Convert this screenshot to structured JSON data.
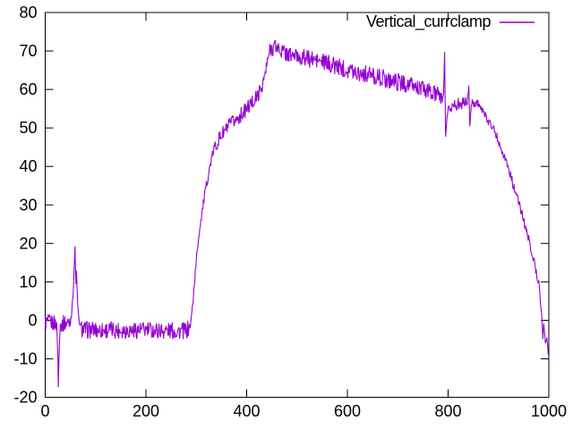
{
  "chart_data": {
    "type": "line",
    "title": "",
    "xlabel": "",
    "ylabel": "",
    "xlim": [
      0,
      1000
    ],
    "ylim": [
      -20,
      80
    ],
    "x_ticks": [
      0,
      200,
      400,
      600,
      800,
      1000
    ],
    "y_ticks": [
      -20,
      -10,
      0,
      10,
      20,
      30,
      40,
      50,
      60,
      70,
      80
    ],
    "grid": false,
    "background": "#ffffff",
    "axis_color": "#000000",
    "legend_position": "top-right-inside",
    "series": [
      {
        "name": "Vertical_currclamp",
        "color": "#9400d3",
        "sample_step": 1,
        "noise_default": 0.5,
        "keypoints": [
          [
            0,
            -0.5
          ],
          [
            20,
            -0.7
          ],
          [
            23,
            -1
          ],
          [
            25,
            -9
          ],
          [
            26,
            -17.5
          ],
          [
            28,
            -6
          ],
          [
            30,
            -1
          ],
          [
            48,
            -0.5
          ],
          [
            52,
            1.5
          ],
          [
            55,
            6
          ],
          [
            57,
            12
          ],
          [
            59,
            18.5
          ],
          [
            61,
            9
          ],
          [
            62,
            13.5
          ],
          [
            64,
            5
          ],
          [
            66,
            1
          ],
          [
            70,
            -2
          ],
          [
            80,
            -2.5
          ],
          [
            150,
            -2.5
          ],
          [
            230,
            -2.6
          ],
          [
            280,
            -2.8
          ],
          [
            286,
            -2
          ],
          [
            289,
            -1
          ],
          [
            294,
            6
          ],
          [
            299,
            14
          ],
          [
            304,
            21
          ],
          [
            310,
            27
          ],
          [
            316,
            32
          ],
          [
            322,
            36.5
          ],
          [
            328,
            40.5
          ],
          [
            334,
            44
          ],
          [
            342,
            46.5
          ],
          [
            352,
            48.5
          ],
          [
            365,
            50.5
          ],
          [
            380,
            52.3
          ],
          [
            395,
            54.2
          ],
          [
            410,
            56.5
          ],
          [
            420,
            58
          ],
          [
            428,
            60
          ],
          [
            434,
            62.5
          ],
          [
            439,
            65.5
          ],
          [
            443,
            68.5
          ],
          [
            448,
            70.8
          ],
          [
            455,
            71.2
          ],
          [
            460,
            71
          ],
          [
            472,
            69.8
          ],
          [
            485,
            69
          ],
          [
            500,
            68.6
          ],
          [
            515,
            68.2
          ],
          [
            530,
            67.8
          ],
          [
            545,
            67.3
          ],
          [
            560,
            66.8
          ],
          [
            575,
            66.2
          ],
          [
            590,
            65.6
          ],
          [
            605,
            65.1
          ],
          [
            620,
            64.6
          ],
          [
            635,
            64.1
          ],
          [
            650,
            63.6
          ],
          [
            665,
            63.1
          ],
          [
            680,
            62.6
          ],
          [
            695,
            62.1
          ],
          [
            710,
            61.6
          ],
          [
            725,
            61.1
          ],
          [
            740,
            60.5
          ],
          [
            755,
            59.8
          ],
          [
            770,
            59
          ],
          [
            782,
            58.2
          ],
          [
            788,
            57.7
          ],
          [
            791,
            58.5
          ],
          [
            793,
            70
          ],
          [
            795,
            47.5
          ],
          [
            797,
            51.5
          ],
          [
            800,
            55
          ],
          [
            808,
            55.8
          ],
          [
            820,
            56.2
          ],
          [
            832,
            56.5
          ],
          [
            839,
            57
          ],
          [
            841,
            61.5
          ],
          [
            843,
            50.5
          ],
          [
            846,
            56
          ],
          [
            852,
            56.8
          ],
          [
            860,
            56.6
          ],
          [
            864,
            55.5
          ],
          [
            870,
            53.8
          ],
          [
            878,
            52.3
          ],
          [
            890,
            50
          ],
          [
            902,
            46
          ],
          [
            912,
            42.5
          ],
          [
            920,
            39.5
          ],
          [
            932,
            34
          ],
          [
            944,
            29
          ],
          [
            954,
            24
          ],
          [
            964,
            19
          ],
          [
            972,
            14.5
          ],
          [
            980,
            9.5
          ],
          [
            986,
            2
          ],
          [
            988,
            -5
          ],
          [
            990,
            -1
          ],
          [
            993,
            -6
          ],
          [
            996,
            -4
          ],
          [
            998,
            -8
          ],
          [
            1000,
            -9
          ]
        ],
        "noise_segments": [
          [
            0,
            22,
            2.2
          ],
          [
            22,
            31,
            0.7
          ],
          [
            31,
            50,
            2.2
          ],
          [
            50,
            70,
            0.9
          ],
          [
            70,
            286,
            2.3
          ],
          [
            286,
            334,
            1.2
          ],
          [
            334,
            443,
            2.0
          ],
          [
            443,
            788,
            2.3
          ],
          [
            788,
            800,
            0.5
          ],
          [
            800,
            839,
            1.6
          ],
          [
            839,
            847,
            0.5
          ],
          [
            847,
            864,
            1.3
          ],
          [
            864,
            985,
            1.2
          ],
          [
            985,
            1000,
            0.7
          ]
        ]
      }
    ]
  },
  "legend": {
    "label": "Vertical_currclamp"
  }
}
